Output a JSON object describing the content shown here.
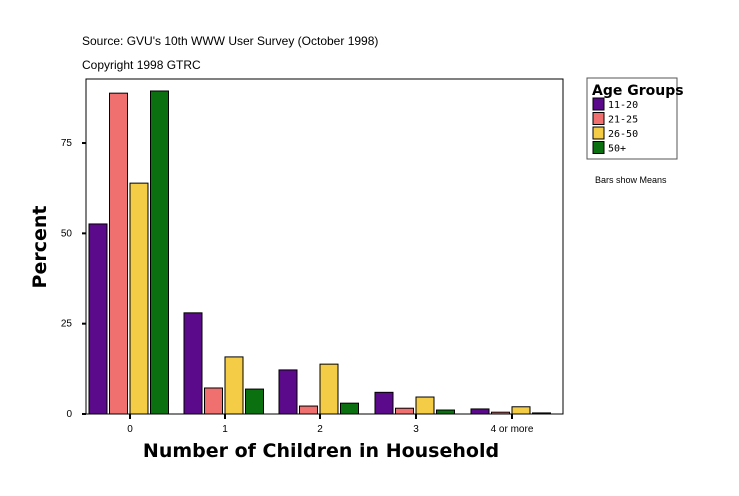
{
  "header": {
    "source": "Source: GVU's 10th WWW User Survey (October 1998)",
    "copyright": "Copyright 1998 GTRC"
  },
  "note": "Bars show Means",
  "chart_data": {
    "type": "bar",
    "xlabel": "Number of Children in Household",
    "ylabel": "Percent",
    "categories": [
      "0",
      "1",
      "2",
      "3",
      "4 or more"
    ],
    "ylim": [
      0,
      90
    ],
    "yticks": [
      0,
      25,
      50,
      75
    ],
    "grid": false,
    "legend_title": "Age Groups",
    "legend_placement": "right",
    "series": [
      {
        "name": "11-20",
        "color": "#5c0a8c",
        "values": [
          52.6,
          28.0,
          12.2,
          6.0,
          1.4
        ]
      },
      {
        "name": "21-25",
        "color": "#f07070",
        "values": [
          88.8,
          7.2,
          2.2,
          1.6,
          0.5
        ]
      },
      {
        "name": "26-50",
        "color": "#f5cc45",
        "values": [
          63.9,
          15.8,
          13.8,
          4.7,
          2.0
        ]
      },
      {
        "name": "50+",
        "color": "#0a7010",
        "values": [
          89.4,
          6.9,
          3.0,
          1.1,
          0.3
        ]
      }
    ]
  }
}
